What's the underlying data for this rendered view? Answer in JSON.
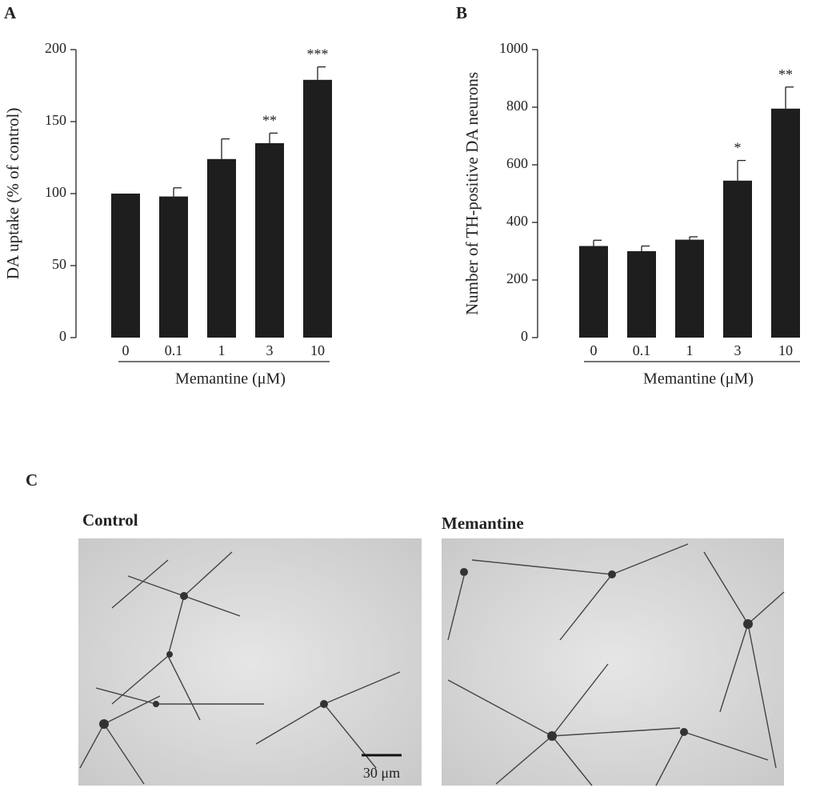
{
  "chart_data": [
    {
      "type": "bar",
      "panel_label": "A",
      "ylabel": "DA uptake (% of control)",
      "xlabel": "Memantine (μM)",
      "categories": [
        "0",
        "0.1",
        "1",
        "3",
        "10"
      ],
      "values": [
        100,
        98,
        124,
        135,
        179
      ],
      "errors": [
        0,
        6,
        14,
        7,
        9
      ],
      "annotations": [
        null,
        null,
        null,
        "**",
        "***"
      ],
      "color": "#1e1e1e",
      "ylim": [
        0,
        200
      ],
      "yticks": [
        0,
        50,
        100,
        150,
        200
      ]
    },
    {
      "type": "bar",
      "panel_label": "B",
      "ylabel": "Number of TH-positive DA neurons",
      "xlabel": "Memantine (μM)",
      "categories": [
        "0",
        "0.1",
        "1",
        "3",
        "10"
      ],
      "values": [
        318,
        300,
        340,
        545,
        795
      ],
      "errors": [
        20,
        18,
        10,
        70,
        75
      ],
      "annotations": [
        null,
        null,
        null,
        "*",
        "**"
      ],
      "color": "#1e1e1e",
      "ylim": [
        0,
        1000
      ],
      "yticks": [
        0,
        200,
        400,
        600,
        800,
        1000
      ]
    }
  ],
  "figure_c": {
    "panel_label": "C",
    "images": [
      {
        "title": "Control",
        "scale_bar": "30 μm"
      },
      {
        "title": "Memantine"
      }
    ]
  }
}
